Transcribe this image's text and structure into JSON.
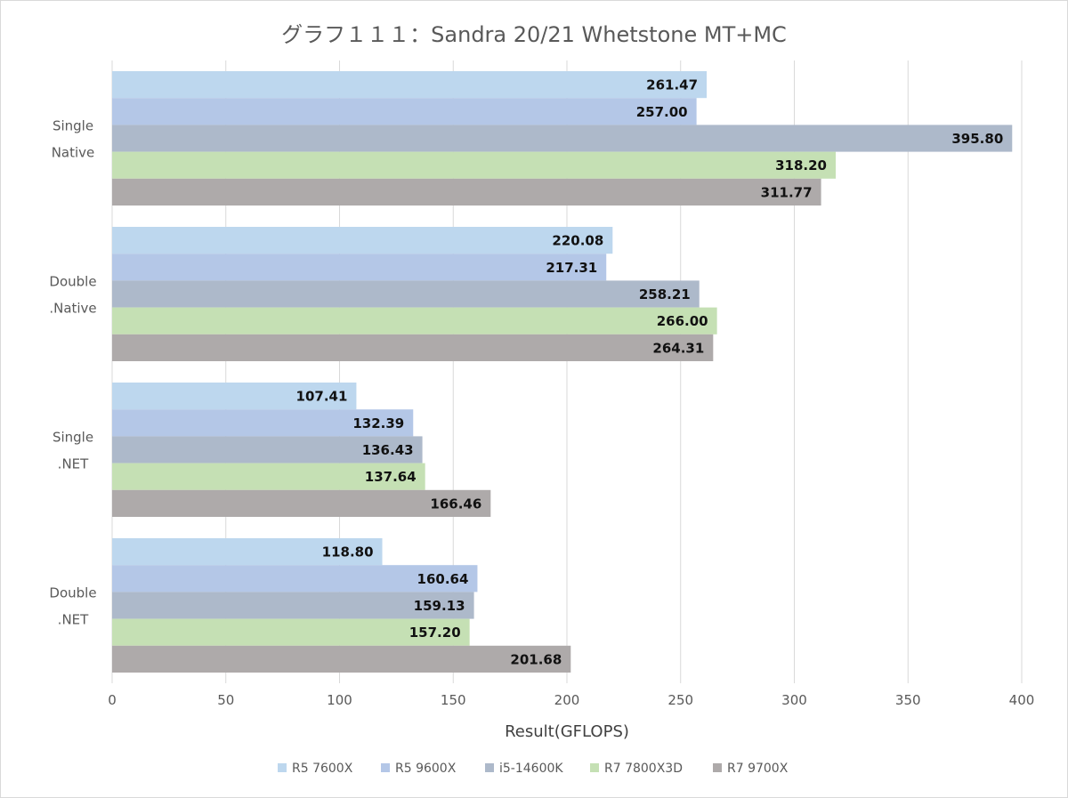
{
  "chart_data": {
    "type": "bar",
    "orientation": "horizontal",
    "title": "グラフ１１１：Sandra 20/21 Whetstone MT+MC",
    "xlabel": "Result(GFLOPS)",
    "ylabel": "",
    "xlim": [
      0,
      400
    ],
    "ticks": [
      "0",
      "50",
      "100",
      "150",
      "200",
      "250",
      "300",
      "350",
      "400"
    ],
    "categories": [
      [
        "Single",
        "Native"
      ],
      [
        "Double",
        ".Native"
      ],
      [
        "Single",
        ".NET"
      ],
      [
        "Double",
        ".NET"
      ]
    ],
    "grid": true,
    "legend_position": "bottom",
    "series": [
      {
        "name": "R5 7600X",
        "color": "#bdd7ee",
        "values": [
          261.47,
          220.08,
          107.41,
          118.8
        ],
        "labels": [
          "261.47",
          "220.08",
          "107.41",
          "118.80"
        ]
      },
      {
        "name": "R5 9600X",
        "color": "#b4c7e7",
        "values": [
          257.0,
          217.31,
          132.39,
          160.64
        ],
        "labels": [
          "257.00",
          "217.31",
          "132.39",
          "160.64"
        ]
      },
      {
        "name": "i5-14600K",
        "color": "#adb9ca",
        "values": [
          395.8,
          258.21,
          136.43,
          159.13
        ],
        "labels": [
          "395.80",
          "258.21",
          "136.43",
          "159.13"
        ]
      },
      {
        "name": "R7 7800X3D",
        "color": "#c5e0b4",
        "values": [
          318.2,
          266.0,
          137.64,
          157.2
        ],
        "labels": [
          "318.20",
          "266.00",
          "137.64",
          "157.20"
        ]
      },
      {
        "name": "R7 9700X",
        "color": "#aeaaaa",
        "values": [
          311.77,
          264.31,
          166.46,
          201.68
        ],
        "labels": [
          "311.77",
          "264.31",
          "166.46",
          "201.68"
        ]
      }
    ]
  }
}
